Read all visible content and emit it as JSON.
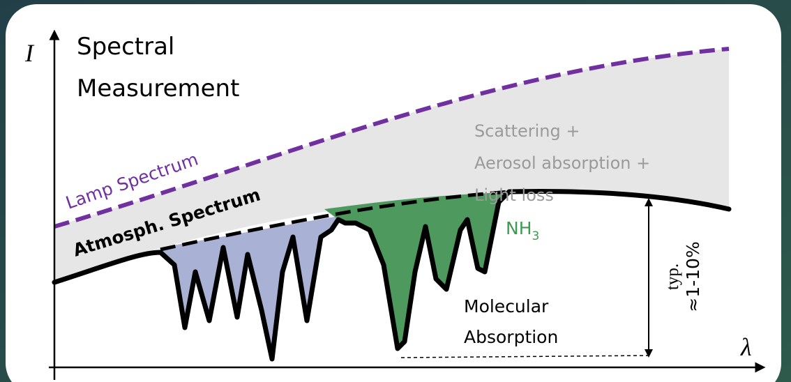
{
  "axes": {
    "y_label": "I",
    "x_label": "λ"
  },
  "title": [
    "Spectral",
    "Measurement"
  ],
  "lamp_label": "Lamp Spectrum",
  "atmospheric_label": "Atmosph. Spectrum",
  "losses_label": [
    "Scattering +",
    "Aerosol absorption +",
    "Light loss"
  ],
  "nh3_label": {
    "base": "NH",
    "subscript": "3"
  },
  "molecular_label": [
    "Molecular",
    "Absorption"
  ],
  "depth_label": [
    "typ.",
    "≈1-10%"
  ]
}
